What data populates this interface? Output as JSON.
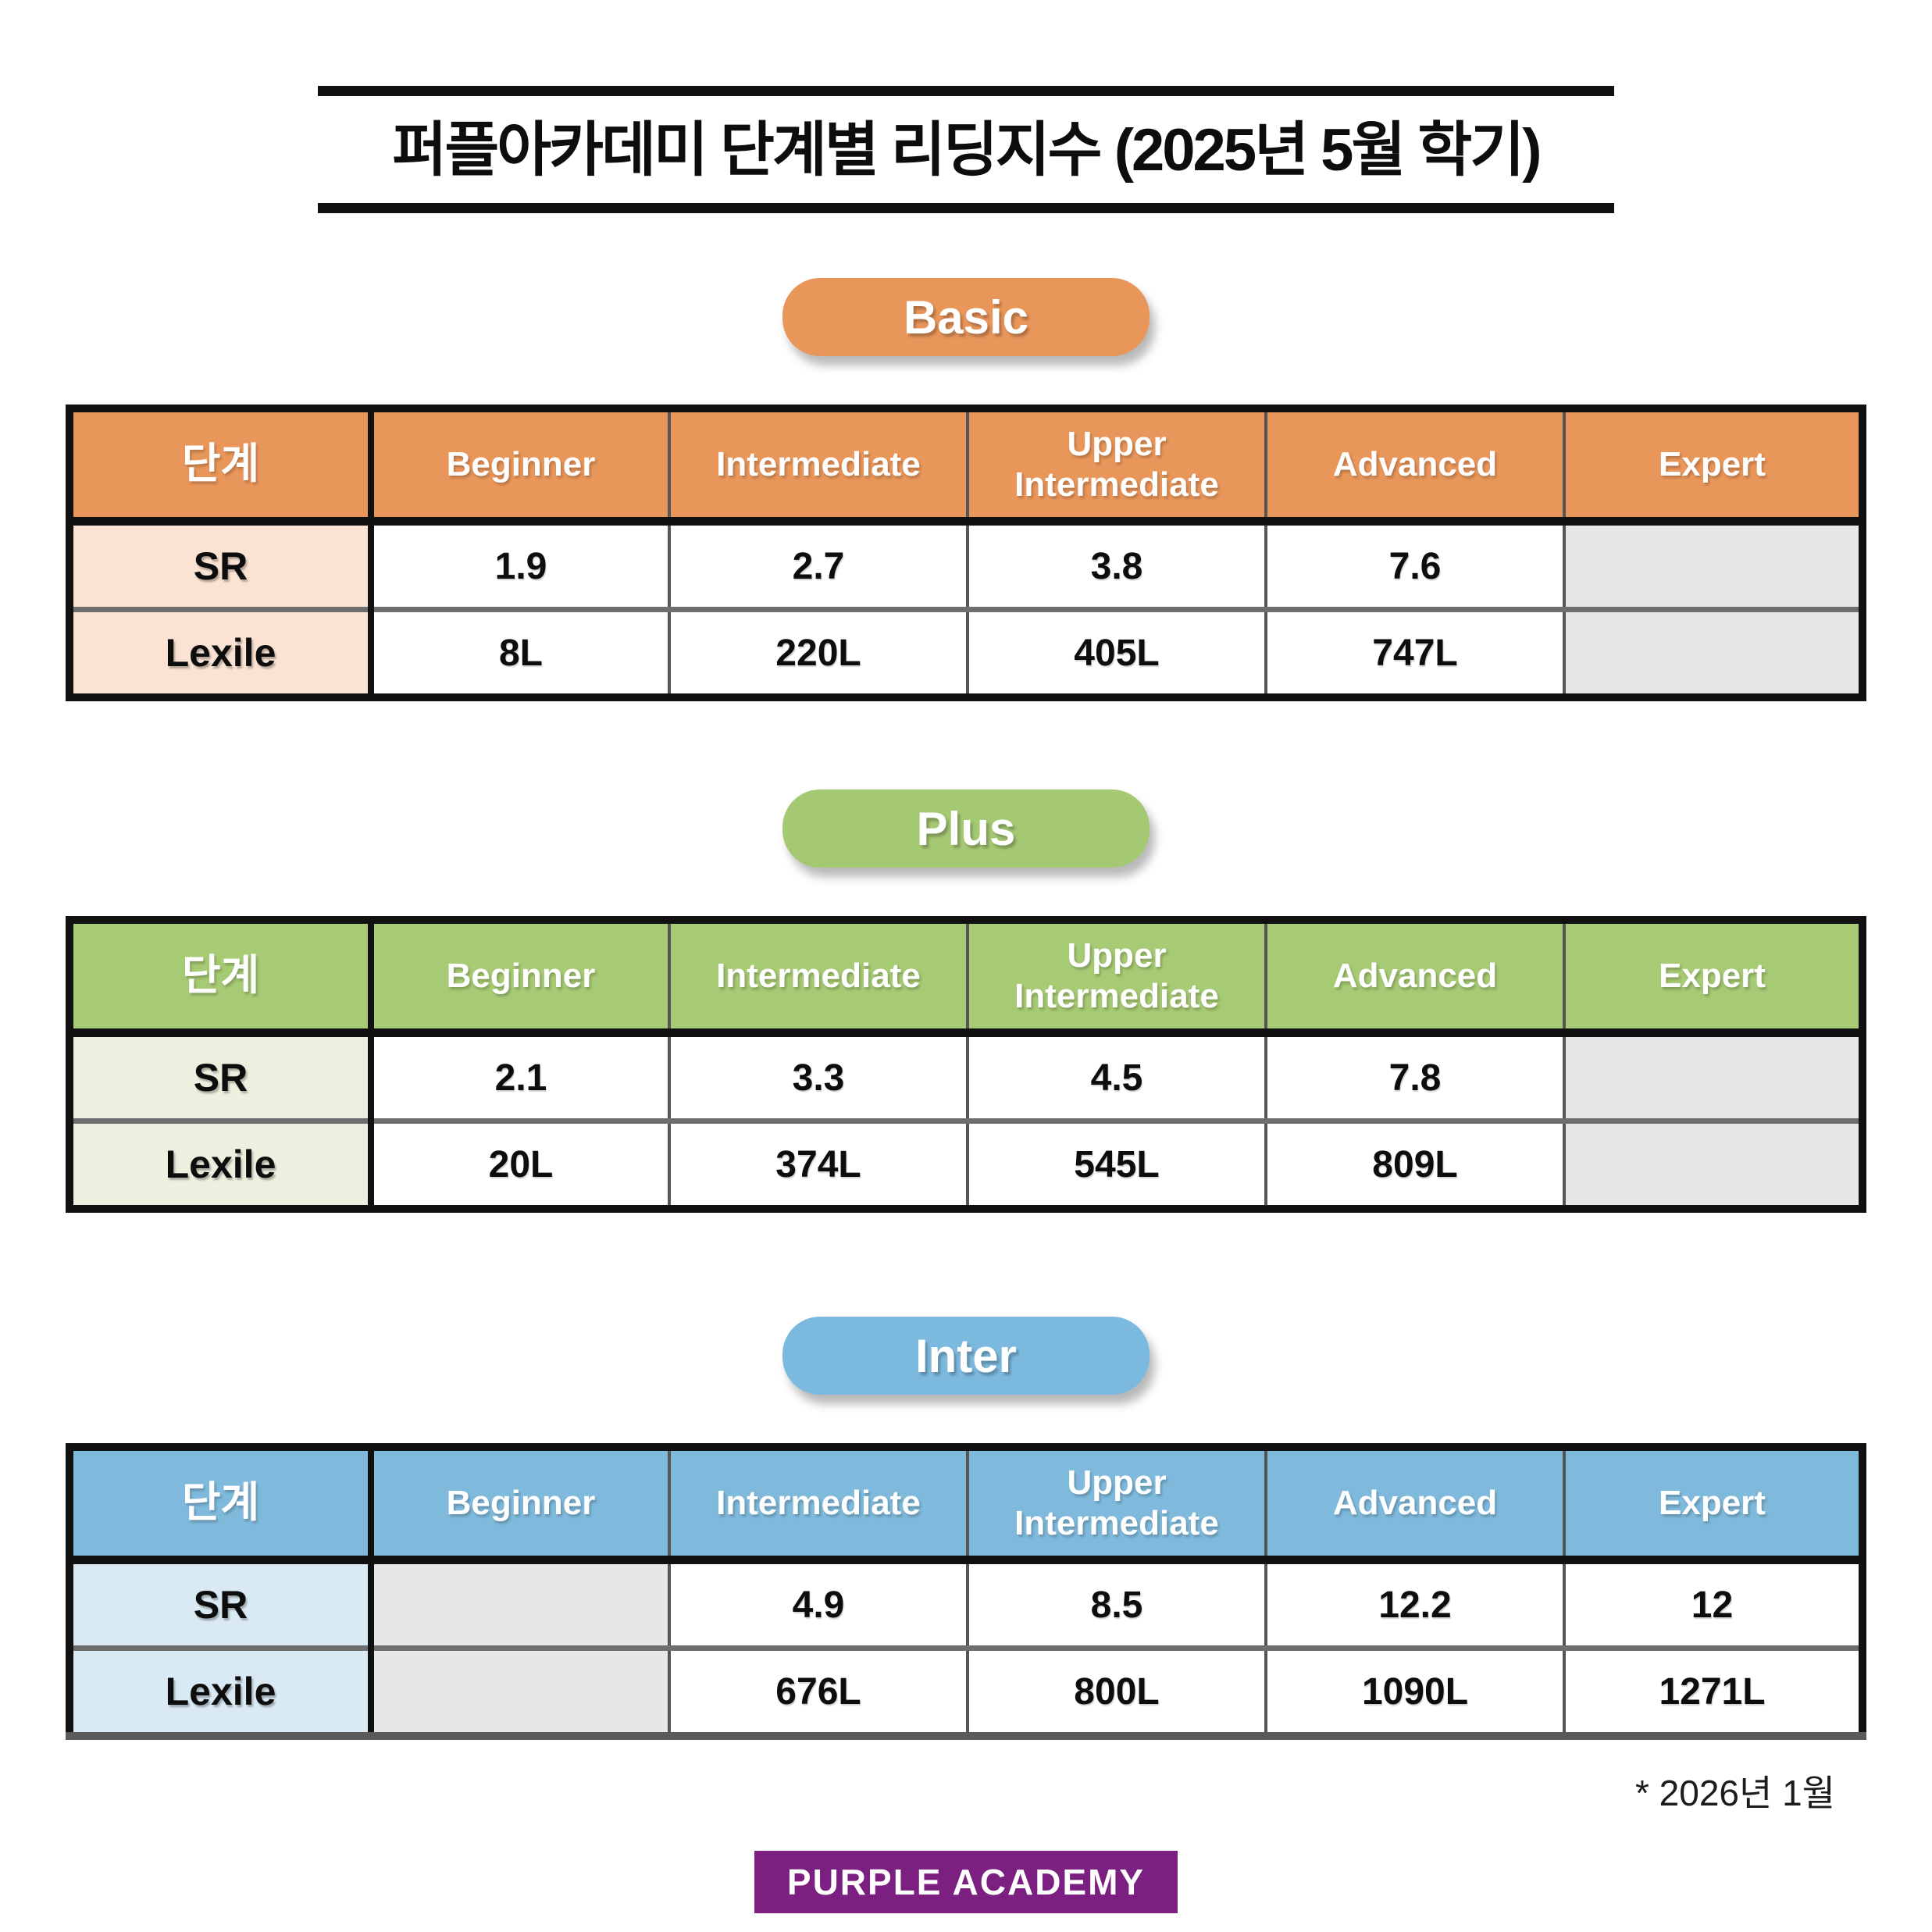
{
  "title": "퍼플아카데미 단계별 리딩지수 (2025년 5월 학기)",
  "columns": [
    "단계",
    "Beginner",
    "Intermediate",
    "Upper Intermediate",
    "Advanced",
    "Expert"
  ],
  "sections": [
    {
      "badge": "Basic",
      "colors": {
        "badge_bg": "#e9965a",
        "header_bg": "#e9965a",
        "label_bg": "#fae3d2",
        "bottom_border": "#111111"
      },
      "rows": [
        {
          "label": "SR",
          "values": [
            "1.9",
            "2.7",
            "3.8",
            "7.6",
            ""
          ]
        },
        {
          "label": "Lexile",
          "values": [
            "8L",
            "220L",
            "405L",
            "747L",
            ""
          ]
        }
      ]
    },
    {
      "badge": "Plus",
      "colors": {
        "badge_bg": "#a5c873",
        "header_bg": "#a7ca74",
        "label_bg": "#ebf1de",
        "bottom_border": "#111111"
      },
      "rows": [
        {
          "label": "SR",
          "values": [
            "2.1",
            "3.3",
            "4.5",
            "7.8",
            ""
          ]
        },
        {
          "label": "Lexile",
          "values": [
            "20L",
            "374L",
            "545L",
            "809L",
            ""
          ]
        }
      ]
    },
    {
      "badge": "Inter",
      "colors": {
        "badge_bg": "#7cb9de",
        "header_bg": "#7fbadc",
        "label_bg": "#daeaf4",
        "bottom_border": "#5a5a5a"
      },
      "rows": [
        {
          "label": "SR",
          "values": [
            "",
            "4.9",
            "8.5",
            "12.2",
            "12"
          ]
        },
        {
          "label": "Lexile",
          "values": [
            "",
            "676L",
            "800L",
            "1090L",
            "1271L"
          ]
        }
      ]
    }
  ],
  "colors": {
    "empty_cell": "#e7e7e7",
    "logo_bg": "#7b1f80",
    "logo_text": "#ffffff"
  },
  "footnote": "* 2026년  1월",
  "logo_text": "PURPLE ACADEMY"
}
